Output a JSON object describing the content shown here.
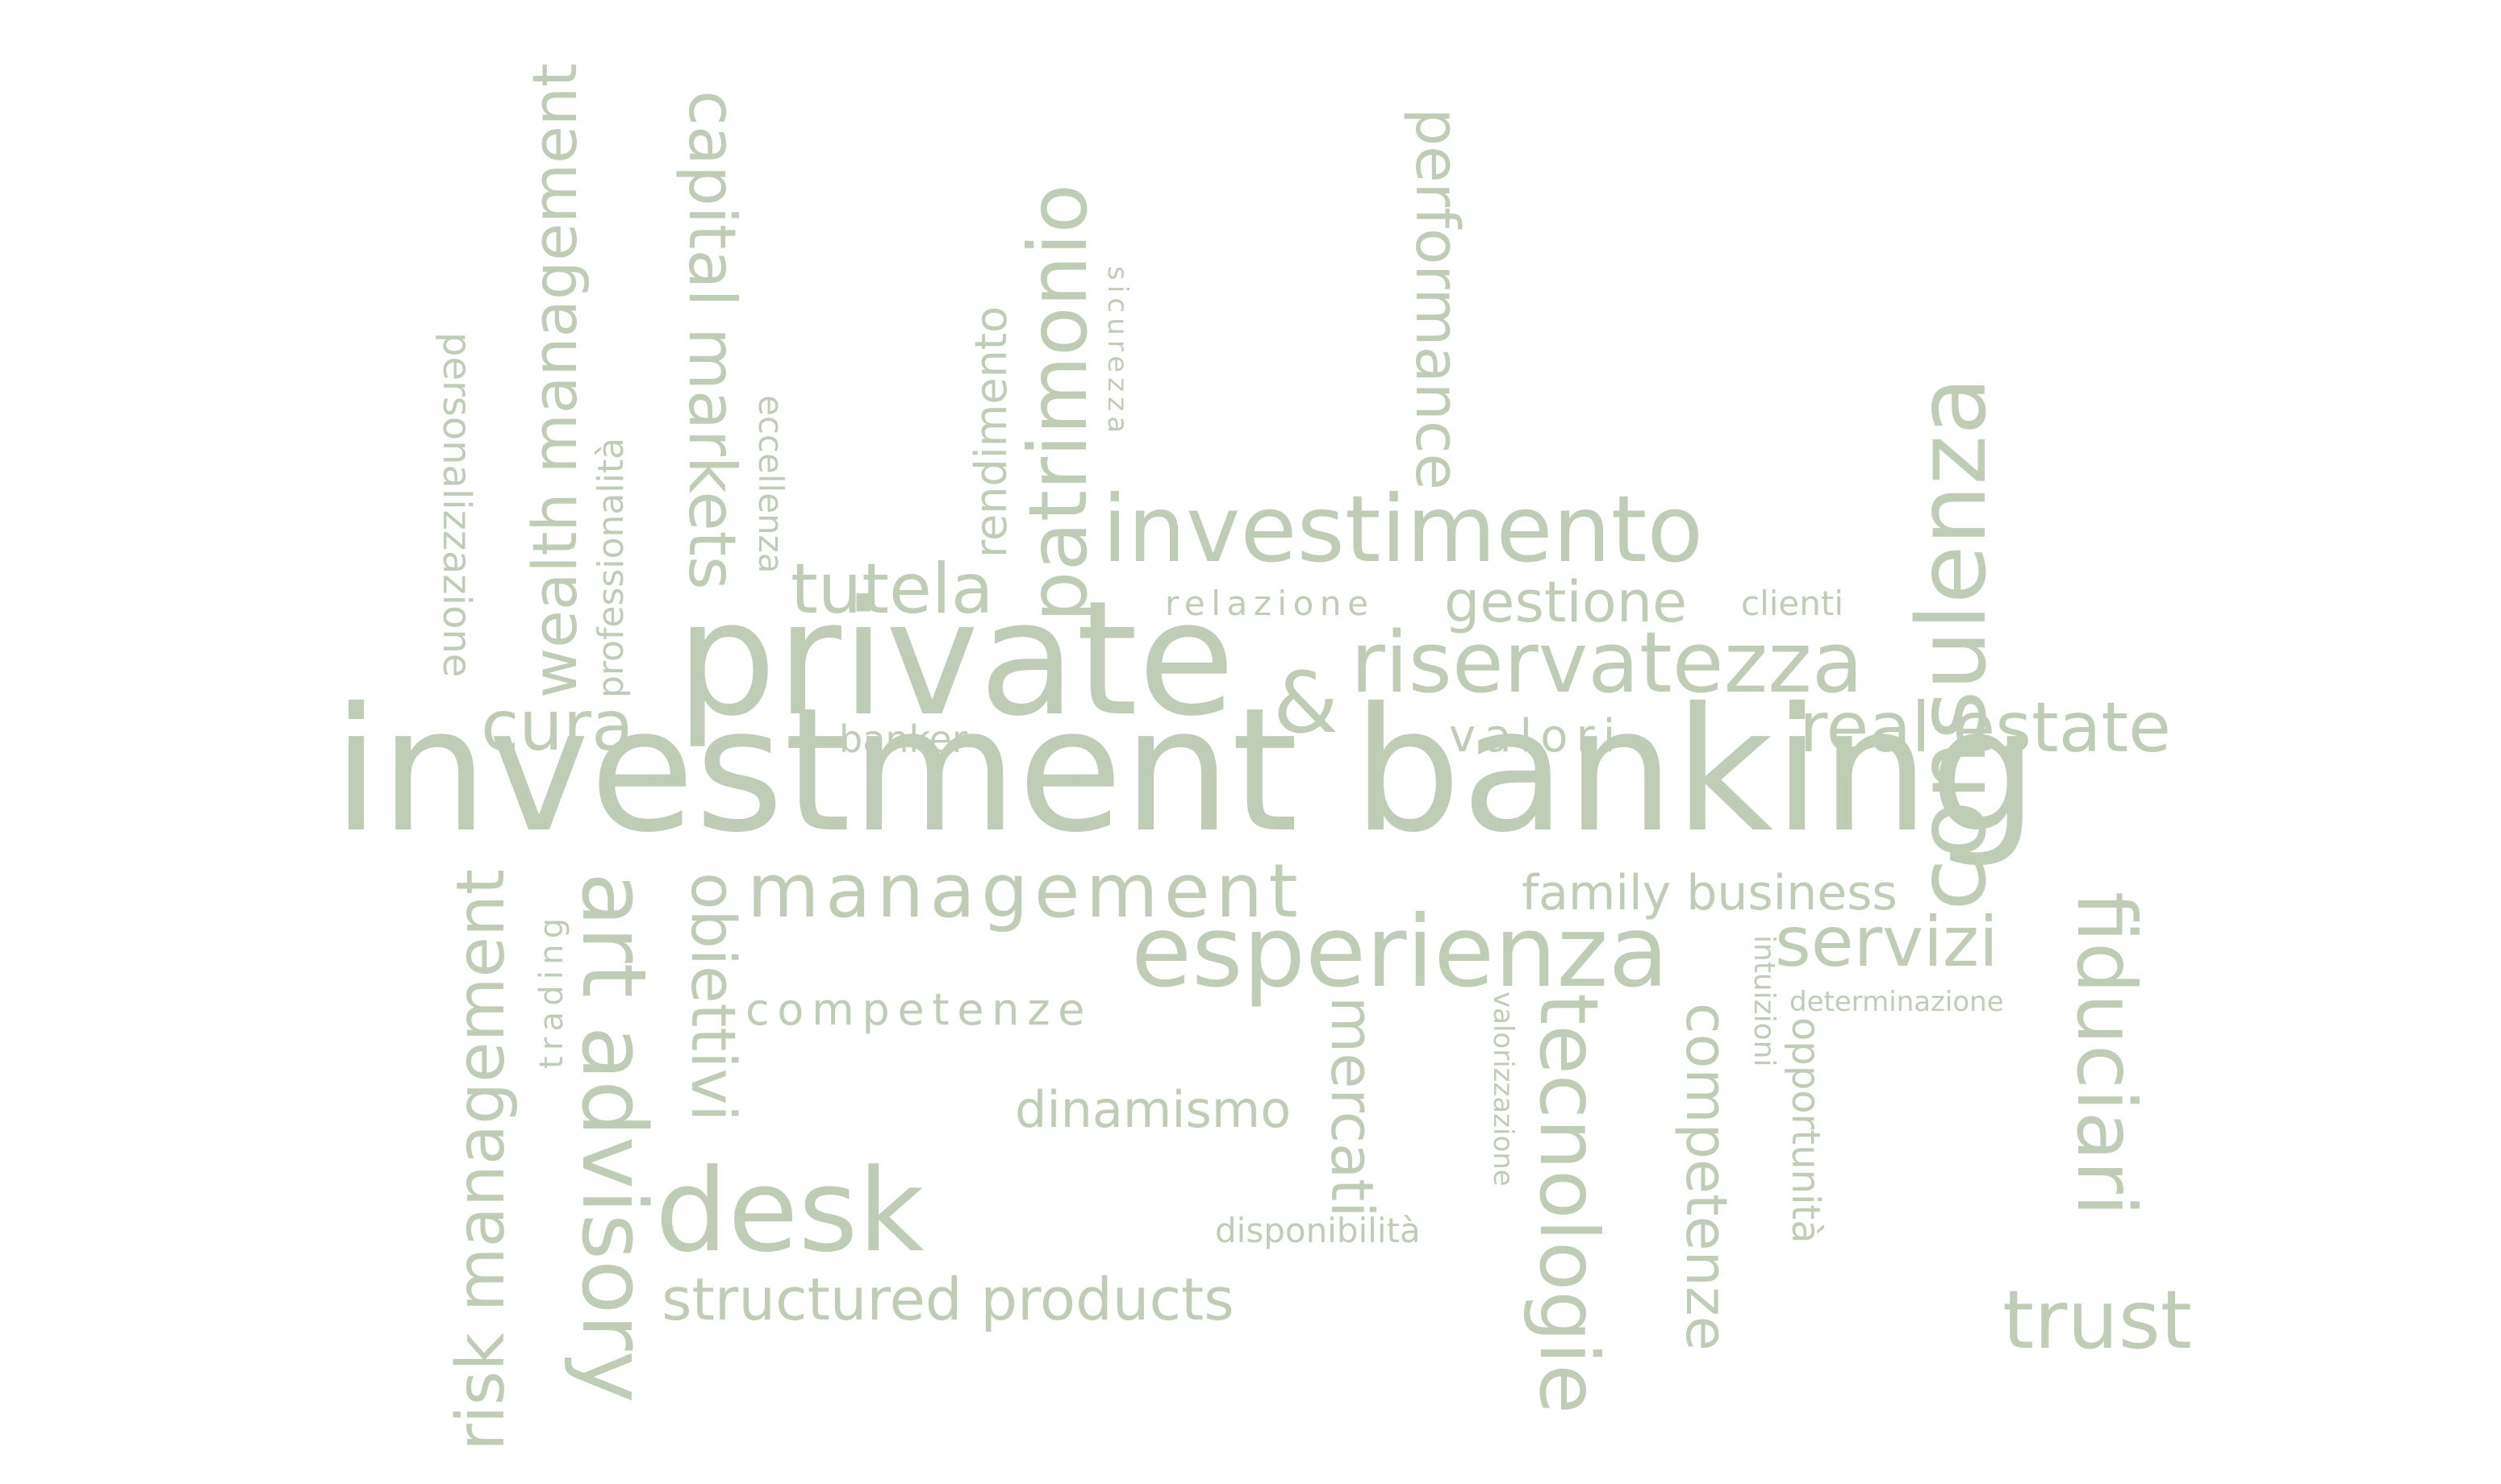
{
  "cloud": {
    "color": "#c0cdb6",
    "words": {
      "investment_banking": "investment banking",
      "private": "private",
      "ampersand": "&",
      "investimento": "investimento",
      "riservatezza": "riservatezza",
      "consulenza": "consulenza",
      "management": "management",
      "esperienza": "esperienza",
      "real_estate": "real estate",
      "tutela": "tutela",
      "cura": "cura",
      "gestione": "gestione",
      "relazione": "relazione",
      "clienti": "clienti",
      "valori": "valori",
      "banker": "banker",
      "patrimonio": "patrimonio",
      "rendimento": "rendimento",
      "sicurezza": "sicurezza",
      "capital_markets": "capital markets",
      "eccellenza": "eccellenza",
      "wealth_management": "wealth management",
      "professionalita": "professionalità",
      "personalizzazione": "personalizzazione",
      "performance": "performance",
      "family_business": "family business",
      "servizi": "servizi",
      "fiduciari": "fiduciari",
      "determinazione": "determinazione",
      "intuizioni": "intuizioni",
      "opportunita": "opportunità",
      "competenze_v": "competenze",
      "tecnologie": "tecnologie",
      "valorizzazione": "valorizzazione",
      "mercati": "mercati",
      "competenze_h": "competenze",
      "dinamismo": "dinamismo",
      "disponibilita": "disponibilità",
      "desk": "desk",
      "structured_products": "structured products",
      "trust": "trust",
      "obiettivi": "obiettivi",
      "art_advisory": "art advisory",
      "trading": "trading",
      "risk_management": "risk management"
    }
  }
}
